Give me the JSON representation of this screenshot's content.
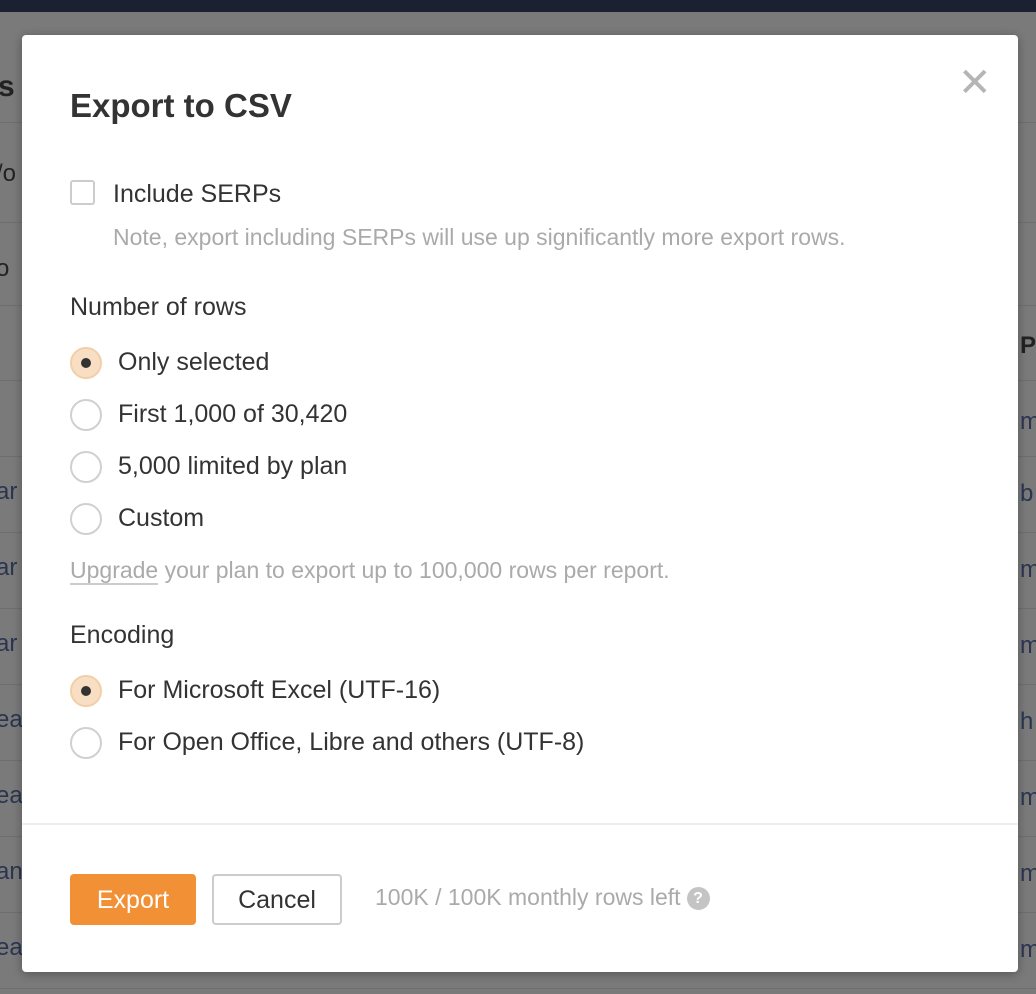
{
  "background": {
    "fragments_left": [
      "s",
      "/o",
      "o",
      "ar",
      "ar",
      "ar",
      "ea",
      "ea",
      "an",
      "ea"
    ],
    "fragments_right": [
      "P",
      "m",
      "b",
      "m",
      "m",
      "h",
      "m",
      "m",
      "m"
    ]
  },
  "dialog": {
    "title": "Export to CSV",
    "close_icon": "close-x",
    "include_serps": {
      "label": "Include SERPs",
      "checked": false,
      "note": "Note, export including SERPs will use up significantly more export rows."
    },
    "rows_section": {
      "label": "Number of rows",
      "options": [
        {
          "label": "Only selected",
          "selected": true
        },
        {
          "label": "First 1,000 of 30,420",
          "selected": false
        },
        {
          "label": "5,000 limited by plan",
          "selected": false
        },
        {
          "label": "Custom",
          "selected": false
        }
      ],
      "upgrade_link": "Upgrade",
      "upgrade_text": " your plan to export up to 100,000 rows per report."
    },
    "encoding_section": {
      "label": "Encoding",
      "options": [
        {
          "label": "For Microsoft Excel (UTF-16)",
          "selected": true
        },
        {
          "label": "For Open Office, Libre and others (UTF-8)",
          "selected": false
        }
      ]
    },
    "footer": {
      "export_label": "Export",
      "cancel_label": "Cancel",
      "rows_left": "100K / 100K monthly rows left",
      "help_icon": "?"
    },
    "colors": {
      "accent": "#f19035",
      "radio_selected": "#f8dfc4"
    }
  }
}
